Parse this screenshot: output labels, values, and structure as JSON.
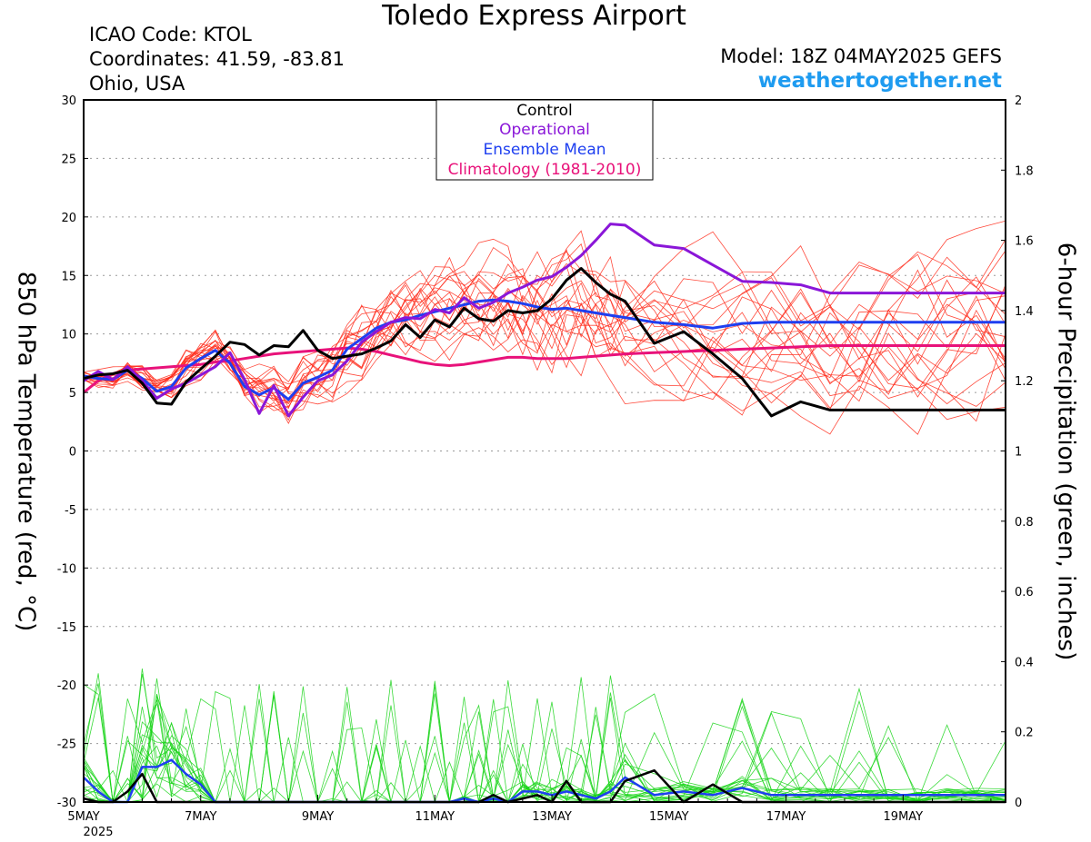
{
  "header": {
    "title": "Toledo Express Airport",
    "icao": "ICAO Code: KTOL",
    "coords": "Coordinates: 41.59, -83.81",
    "region": "Ohio, USA",
    "model": "Model: 18Z 04MAY2025 GEFS",
    "site": "weathertogether.net"
  },
  "colors": {
    "members": "#ff2a1a",
    "precip": "#18d418",
    "control": "#000000",
    "operational": "#8a16d8",
    "mean": "#1e3ff0",
    "climatology": "#e8127a",
    "site": "#1e9bf0"
  },
  "chart_data": {
    "type": "line",
    "xlabel": "",
    "ylabel": "850 hPa Temperature (red, °C)",
    "y2label": "6-hour Precipitation (green, inches)",
    "ylim": [
      -30,
      30
    ],
    "y2lim": [
      0,
      2
    ],
    "x_ticks": [
      "5MAY",
      "7MAY",
      "9MAY",
      "11MAY",
      "13MAY",
      "15MAY",
      "17MAY",
      "19MAY"
    ],
    "x_year": "2025",
    "y_ticks": [
      "30",
      "25",
      "20",
      "15",
      "10",
      "5",
      "0",
      "-5",
      "-10",
      "-15",
      "-20",
      "-25",
      "-30"
    ],
    "y2_ticks": [
      "2",
      "1.8",
      "1.6",
      "1.4",
      "1.2",
      "1",
      "0.8",
      "0.6",
      "0.4",
      "0.2",
      "0"
    ],
    "grid": true,
    "legend_position": "top-center",
    "x_hours_from_5may00z": [
      0,
      6,
      12,
      18,
      24,
      30,
      36,
      42,
      48,
      54,
      60,
      66,
      72,
      78,
      84,
      90,
      96,
      102,
      108,
      114,
      120,
      126,
      132,
      138,
      144,
      150,
      156,
      162,
      168,
      174,
      180,
      186,
      192,
      198,
      204,
      210,
      216,
      222,
      234,
      246,
      258,
      270,
      282,
      294,
      306,
      318,
      330,
      342,
      354,
      366,
      378
    ],
    "series": [
      {
        "name": "Control",
        "axis": "temp",
        "values": [
          6.2,
          6.5,
          6.6,
          6.9,
          5.8,
          4.1,
          4.0,
          5.9,
          7.0,
          8.1,
          9.3,
          9.1,
          8.2,
          9.0,
          8.9,
          10.3,
          8.6,
          7.9,
          8.1,
          8.3,
          8.8,
          9.4,
          10.8,
          9.7,
          11.2,
          10.6,
          12.2,
          11.3,
          11.1,
          12.0,
          11.8,
          12.0,
          13.0,
          14.6,
          15.6,
          14.4,
          13.4,
          12.8,
          9.2,
          10.2,
          8.3,
          6.2,
          3.0,
          4.2,
          3.5,
          3.5,
          3.5,
          3.5,
          3.5,
          3.5,
          3.5
        ]
      },
      {
        "name": "Operational",
        "axis": "temp",
        "values": [
          6.0,
          6.8,
          6.1,
          7.2,
          6.0,
          4.5,
          5.3,
          5.8,
          6.5,
          7.2,
          8.4,
          6.1,
          3.2,
          5.6,
          3.0,
          4.6,
          6.0,
          6.5,
          7.7,
          9.3,
          10.2,
          11.0,
          11.4,
          11.3,
          12.1,
          11.8,
          13.1,
          12.2,
          12.7,
          13.5,
          14.0,
          14.6,
          14.9,
          15.7,
          16.7,
          18.0,
          19.4,
          19.3,
          17.6,
          17.3,
          15.9,
          14.5,
          14.4,
          14.2,
          13.5,
          13.5,
          13.5,
          13.5,
          13.5,
          13.5,
          13.5
        ]
      },
      {
        "name": "Ensemble Mean",
        "axis": "temp",
        "values": [
          6.4,
          6.2,
          6.1,
          6.9,
          6.2,
          5.1,
          5.5,
          7.1,
          7.9,
          8.6,
          7.5,
          5.5,
          4.8,
          5.4,
          4.4,
          5.8,
          6.3,
          6.9,
          8.7,
          9.6,
          10.5,
          11.0,
          11.2,
          11.6,
          11.9,
          12.2,
          12.5,
          12.8,
          12.9,
          12.8,
          12.6,
          12.3,
          12.1,
          12.2,
          12.0,
          11.8,
          11.6,
          11.4,
          11.0,
          10.8,
          10.5,
          10.9,
          11.0,
          11.0,
          11.0,
          11.0,
          11.0,
          11.0,
          11.0,
          11.0,
          11.0
        ]
      },
      {
        "name": "Climatology (1981-2010)",
        "axis": "temp",
        "values": [
          5.0,
          6.0,
          6.6,
          6.9,
          7.0,
          7.1,
          7.2,
          7.3,
          7.4,
          7.6,
          7.7,
          7.9,
          8.1,
          8.3,
          8.4,
          8.5,
          8.6,
          8.7,
          8.8,
          8.7,
          8.5,
          8.2,
          7.9,
          7.6,
          7.4,
          7.3,
          7.4,
          7.6,
          7.8,
          8.0,
          8.0,
          7.9,
          7.9,
          7.9,
          8.0,
          8.1,
          8.2,
          8.3,
          8.4,
          8.5,
          8.6,
          8.7,
          8.8,
          8.9,
          9.0,
          9.0,
          9.0,
          9.0,
          9.0,
          9.0,
          9.0
        ]
      },
      {
        "name": "Control",
        "axis": "precip",
        "values": [
          0.01,
          0.0,
          0.0,
          0.03,
          0.08,
          0.0,
          0.0,
          0.0,
          0.0,
          0.0,
          0.0,
          0.0,
          0.0,
          0.0,
          0.0,
          0.0,
          0.0,
          0.0,
          0.0,
          0.0,
          0.0,
          0.0,
          0.0,
          0.0,
          0.0,
          0.0,
          0.0,
          0.0,
          0.02,
          0.0,
          0.01,
          0.02,
          0.0,
          0.06,
          0.0,
          0.0,
          0.0,
          0.06,
          0.09,
          0.0,
          0.05,
          0.0,
          0.0,
          0.0,
          0.0,
          0.0,
          0.0,
          0.0,
          0.0,
          0.0,
          0.0
        ]
      },
      {
        "name": "Ensemble Mean",
        "axis": "precip",
        "values": [
          0.07,
          0.03,
          0.0,
          0.0,
          0.1,
          0.1,
          0.12,
          0.08,
          0.05,
          0.0,
          0.0,
          0.0,
          0.0,
          0.0,
          0.0,
          0.0,
          0.0,
          0.0,
          0.0,
          0.0,
          0.0,
          0.0,
          0.0,
          0.0,
          0.0,
          0.0,
          0.01,
          0.0,
          0.01,
          0.0,
          0.03,
          0.03,
          0.02,
          0.03,
          0.02,
          0.01,
          0.03,
          0.07,
          0.02,
          0.03,
          0.02,
          0.04,
          0.02,
          0.02,
          0.02,
          0.02,
          0.02,
          0.02,
          0.02,
          0.02,
          0.02
        ]
      }
    ]
  }
}
